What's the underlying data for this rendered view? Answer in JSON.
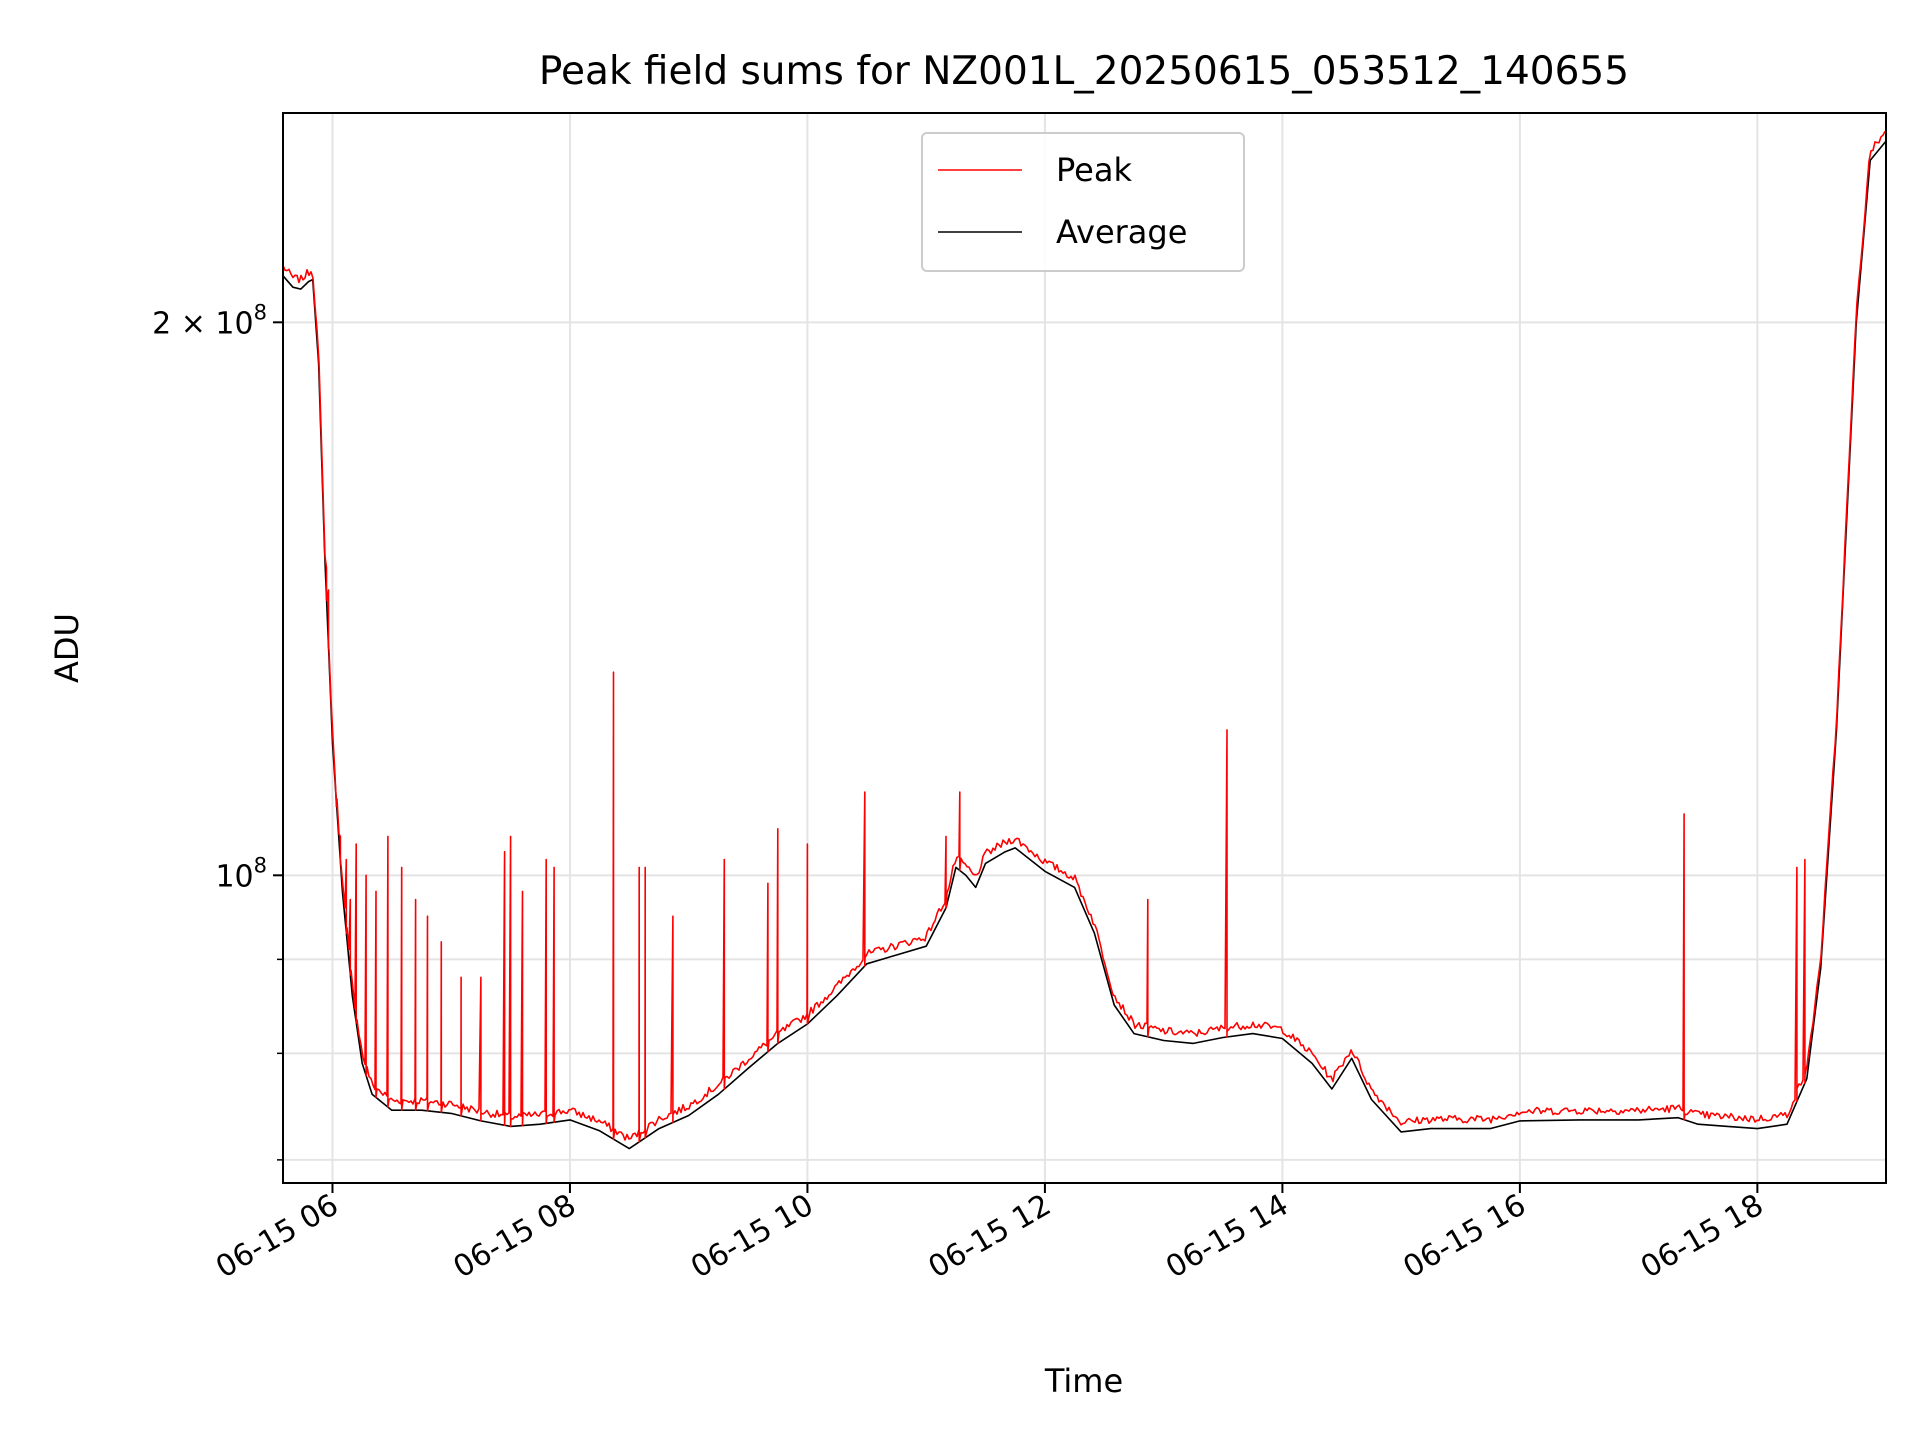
{
  "chart_data": {
    "type": "line",
    "title": "Peak field sums for NZ001L_20250615_053512_140655",
    "xlabel": "Time",
    "ylabel": "ADU",
    "y_scale": "log",
    "grid": true,
    "legend_position": "upper center",
    "xlim": [
      "06-15 05:35",
      "06-15 19:05"
    ],
    "ylim": [
      68000000,
      260000000
    ],
    "x_ticks": [
      {
        "time": "06-15 06:00",
        "label": "06-15 06"
      },
      {
        "time": "06-15 08:00",
        "label": "06-15 08"
      },
      {
        "time": "06-15 10:00",
        "label": "06-15 10"
      },
      {
        "time": "06-15 12:00",
        "label": "06-15 12"
      },
      {
        "time": "06-15 14:00",
        "label": "06-15 14"
      },
      {
        "time": "06-15 16:00",
        "label": "06-15 16"
      },
      {
        "time": "06-15 18:00",
        "label": "06-15 18"
      }
    ],
    "y_ticks_major": [
      {
        "value": 100000000,
        "base": "10",
        "exp": "8",
        "coef": ""
      },
      {
        "value": 200000000,
        "base": "10",
        "exp": "8",
        "coef": "2 × "
      }
    ],
    "y_ticks_minor": [
      70000000,
      80000000,
      90000000
    ],
    "series": [
      {
        "name": "Average",
        "color": "#000000",
        "points": [
          [
            "06-15 05:35",
            212000000
          ],
          [
            "06-15 05:40",
            209000000
          ],
          [
            "06-15 05:44",
            208500000
          ],
          [
            "06-15 05:48",
            210500000
          ],
          [
            "06-15 05:50",
            211000000
          ],
          [
            "06-15 05:53",
            190000000
          ],
          [
            "06-15 05:56",
            150000000
          ],
          [
            "06-15 06:00",
            118000000
          ],
          [
            "06-15 06:05",
            98000000
          ],
          [
            "06-15 06:10",
            86000000
          ],
          [
            "06-15 06:15",
            79000000
          ],
          [
            "06-15 06:20",
            76000000
          ],
          [
            "06-15 06:30",
            74500000
          ],
          [
            "06-15 06:45",
            74500000
          ],
          [
            "06-15 07:00",
            74200000
          ],
          [
            "06-15 07:15",
            73500000
          ],
          [
            "06-15 07:30",
            73000000
          ],
          [
            "06-15 07:45",
            73200000
          ],
          [
            "06-15 08:00",
            73600000
          ],
          [
            "06-15 08:15",
            72600000
          ],
          [
            "06-15 08:30",
            71000000
          ],
          [
            "06-15 08:45",
            72800000
          ],
          [
            "06-15 09:00",
            74000000
          ],
          [
            "06-15 09:15",
            76000000
          ],
          [
            "06-15 09:30",
            78500000
          ],
          [
            "06-15 09:45",
            81000000
          ],
          [
            "06-15 10:00",
            83000000
          ],
          [
            "06-15 10:15",
            86000000
          ],
          [
            "06-15 10:30",
            89500000
          ],
          [
            "06-15 10:45",
            90500000
          ],
          [
            "06-15 11:00",
            91500000
          ],
          [
            "06-15 11:10",
            96000000
          ],
          [
            "06-15 11:15",
            101000000
          ],
          [
            "06-15 11:20",
            100000000
          ],
          [
            "06-15 11:25",
            98500000
          ],
          [
            "06-15 11:30",
            101500000
          ],
          [
            "06-15 11:40",
            103000000
          ],
          [
            "06-15 11:45",
            103500000
          ],
          [
            "06-15 12:00",
            100500000
          ],
          [
            "06-15 12:15",
            98500000
          ],
          [
            "06-15 12:25",
            93000000
          ],
          [
            "06-15 12:35",
            85000000
          ],
          [
            "06-15 12:45",
            82000000
          ],
          [
            "06-15 13:00",
            81300000
          ],
          [
            "06-15 13:15",
            81000000
          ],
          [
            "06-15 13:30",
            81600000
          ],
          [
            "06-15 13:45",
            82000000
          ],
          [
            "06-15 14:00",
            81500000
          ],
          [
            "06-15 14:15",
            79000000
          ],
          [
            "06-15 14:25",
            76500000
          ],
          [
            "06-15 14:35",
            79500000
          ],
          [
            "06-15 14:45",
            75500000
          ],
          [
            "06-15 15:00",
            72500000
          ],
          [
            "06-15 15:15",
            72800000
          ],
          [
            "06-15 15:30",
            72800000
          ],
          [
            "06-15 15:45",
            72800000
          ],
          [
            "06-15 16:00",
            73500000
          ],
          [
            "06-15 16:30",
            73600000
          ],
          [
            "06-15 17:00",
            73600000
          ],
          [
            "06-15 17:20",
            73800000
          ],
          [
            "06-15 17:30",
            73200000
          ],
          [
            "06-15 17:45",
            73000000
          ],
          [
            "06-15 18:00",
            72800000
          ],
          [
            "06-15 18:15",
            73200000
          ],
          [
            "06-15 18:25",
            77500000
          ],
          [
            "06-15 18:32",
            89000000
          ],
          [
            "06-15 18:40",
            120000000
          ],
          [
            "06-15 18:50",
            200000000
          ],
          [
            "06-15 18:57",
            245000000
          ],
          [
            "06-15 19:05",
            251000000
          ]
        ]
      },
      {
        "name": "Peak",
        "color": "#ff0000",
        "spikes": [
          [
            "06-15 05:57",
            147000000
          ],
          [
            "06-15 05:58",
            143000000
          ],
          [
            "06-15 06:02",
            109000000
          ],
          [
            "06-15 06:04",
            105000000
          ],
          [
            "06-15 06:07",
            102000000
          ],
          [
            "06-15 06:09",
            97000000
          ],
          [
            "06-15 06:12",
            104000000
          ],
          [
            "06-15 06:17",
            100000000
          ],
          [
            "06-15 06:22",
            98000000
          ],
          [
            "06-15 06:28",
            105000000
          ],
          [
            "06-15 06:35",
            101000000
          ],
          [
            "06-15 06:42",
            97000000
          ],
          [
            "06-15 06:48",
            95000000
          ],
          [
            "06-15 06:55",
            92000000
          ],
          [
            "06-15 07:05",
            88000000
          ],
          [
            "06-15 07:15",
            88000000
          ],
          [
            "06-15 07:27",
            103000000
          ],
          [
            "06-15 07:30",
            105000000
          ],
          [
            "06-15 07:36",
            98000000
          ],
          [
            "06-15 07:48",
            102000000
          ],
          [
            "06-15 07:52",
            101000000
          ],
          [
            "06-15 08:22",
            129000000
          ],
          [
            "06-15 08:35",
            101000000
          ],
          [
            "06-15 08:38",
            101000000
          ],
          [
            "06-15 08:52",
            95000000
          ],
          [
            "06-15 09:18",
            102000000
          ],
          [
            "06-15 09:40",
            99000000
          ],
          [
            "06-15 09:45",
            106000000
          ],
          [
            "06-15 10:00",
            104000000
          ],
          [
            "06-15 10:29",
            111000000
          ],
          [
            "06-15 11:10",
            105000000
          ],
          [
            "06-15 11:17",
            111000000
          ],
          [
            "06-15 12:52",
            97000000
          ],
          [
            "06-15 13:32",
            120000000
          ],
          [
            "06-15 17:23",
            108000000
          ],
          [
            "06-15 18:20",
            101000000
          ],
          [
            "06-15 18:24",
            102000000
          ]
        ]
      }
    ]
  }
}
